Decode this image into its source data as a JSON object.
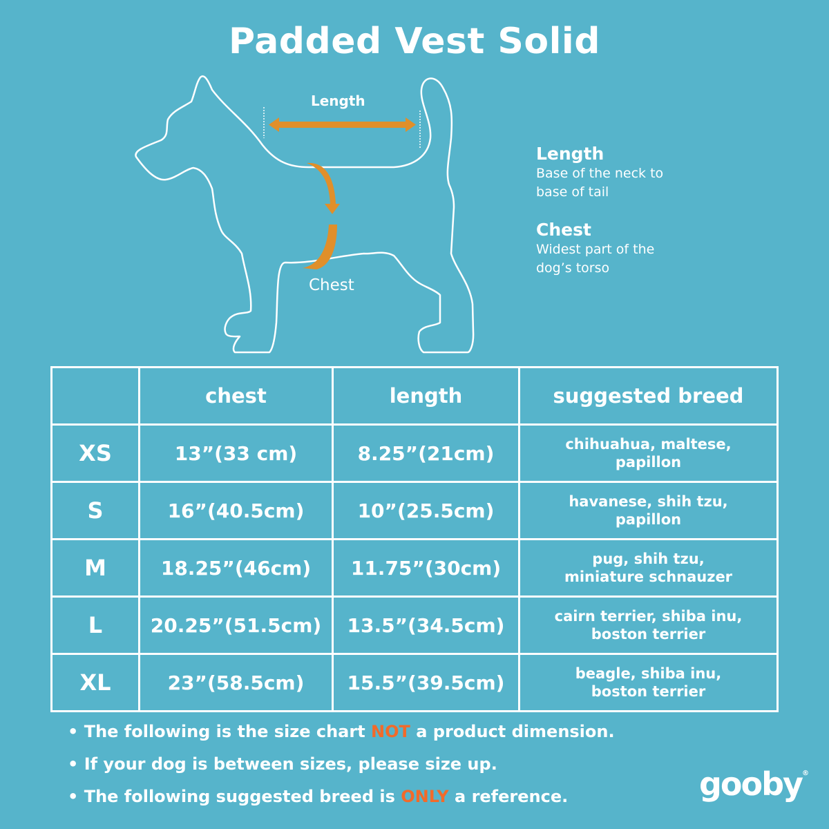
{
  "title": "Padded Vest Solid",
  "diagram": {
    "length_label": "Length",
    "chest_label": "Chest"
  },
  "legend": [
    {
      "term": "Length",
      "desc": "Base of the neck to base of tail"
    },
    {
      "term": "Chest",
      "desc": "Widest part of the dog’s torso"
    }
  ],
  "table": {
    "headers": [
      "",
      "chest",
      "length",
      "suggested breed"
    ],
    "rows": [
      {
        "size": "XS",
        "chest": "13”(33 cm)",
        "length": "8.25”(21cm)",
        "breed": "chihuahua, maltese, papillon"
      },
      {
        "size": "S",
        "chest": "16”(40.5cm)",
        "length": "10”(25.5cm)",
        "breed": "havanese, shih tzu, papillon"
      },
      {
        "size": "M",
        "chest": "18.25”(46cm)",
        "length": "11.75”(30cm)",
        "breed": "pug, shih tzu, miniature schnauzer"
      },
      {
        "size": "L",
        "chest": "20.25”(51.5cm)",
        "length": "13.5”(34.5cm)",
        "breed": "cairn terrier, shiba inu, boston terrier"
      },
      {
        "size": "XL",
        "chest": "23”(58.5cm)",
        "length": "15.5”(39.5cm)",
        "breed": "beagle, shiba inu, boston terrier"
      }
    ]
  },
  "notes": [
    {
      "pre": "The following is  the size chart ",
      "highlight": "NOT",
      "post": " a product dimension."
    },
    {
      "pre": "If your dog is between sizes, please size up.",
      "highlight": "",
      "post": ""
    },
    {
      "pre": "The following suggested breed is ",
      "highlight": "ONLY",
      "post": " a reference."
    }
  ],
  "brand": {
    "logo_text": "gooby",
    "registered": "®"
  },
  "colors": {
    "background": "#56b4cb",
    "arrow": "#e08f2a",
    "highlight": "#f26a2a",
    "line": "#ffffff"
  }
}
